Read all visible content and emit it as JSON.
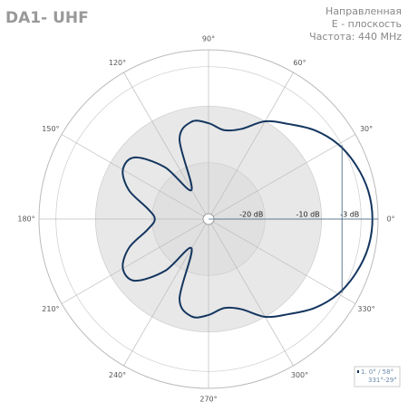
{
  "chart_data": {
    "type": "polar",
    "title": "DA1- UHF",
    "subtitle_lines": [
      "Направленная",
      "E - плоскость",
      "Частота: 440 MHz"
    ],
    "rlim": [
      -30,
      0
    ],
    "rticks": [
      {
        "value": -20,
        "label": "-20 dB"
      },
      {
        "value": -10,
        "label": "-10 dB"
      },
      {
        "value": -3,
        "label": "-3 dB"
      }
    ],
    "angle_ticks": [
      {
        "value": 0,
        "label": "0°"
      },
      {
        "value": 30,
        "label": "30°"
      },
      {
        "value": 60,
        "label": "60°"
      },
      {
        "value": 90,
        "label": "90°"
      },
      {
        "value": 120,
        "label": "120°"
      },
      {
        "value": 150,
        "label": "150°"
      },
      {
        "value": 180,
        "label": "180°"
      },
      {
        "value": 210,
        "label": "210°"
      },
      {
        "value": 240,
        "label": "240°"
      },
      {
        "value": 270,
        "label": "270°"
      },
      {
        "value": 300,
        "label": "300°"
      },
      {
        "value": 330,
        "label": "330°"
      }
    ],
    "theta": [
      0,
      10,
      20,
      30,
      40,
      50,
      60,
      70,
      80,
      90,
      100,
      110,
      120,
      130,
      140,
      150,
      160,
      170,
      180,
      190,
      200,
      210,
      220,
      230,
      240,
      250,
      260,
      270,
      280,
      290,
      300,
      310,
      320,
      330,
      340,
      350
    ],
    "series": [
      {
        "name": "1. 0° / 58°",
        "range_label": "331°-29°",
        "color": "#14365f",
        "values": [
          -1,
          -1.3,
          -2.2,
          -3.5,
          -5.5,
          -8,
          -10,
          -13,
          -14,
          -13,
          -12.5,
          -15,
          -24,
          -18,
          -13,
          -12.5,
          -15,
          -19,
          -20.5,
          -19,
          -15,
          -12.5,
          -13,
          -18,
          -24,
          -15,
          -12.5,
          -13,
          -14,
          -13,
          -10,
          -8,
          -5.5,
          -3.5,
          -2.2,
          -1.3
        ]
      }
    ],
    "beam_edges": [
      29,
      331
    ],
    "beam_level": -3,
    "legend": "bottom-right"
  }
}
